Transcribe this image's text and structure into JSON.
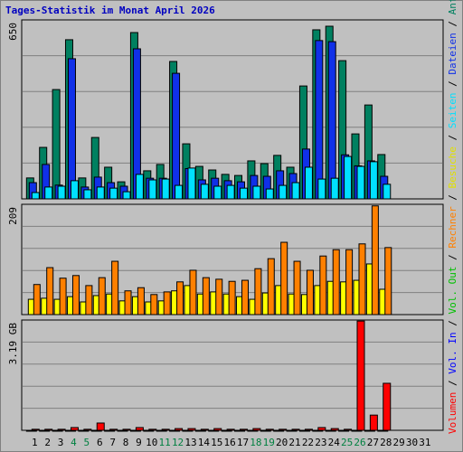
{
  "title": "Tages-Statistik im Monat April 2026",
  "legend_separator": " / ",
  "chart_data": [
    {
      "type": "bar",
      "ylim": [
        0,
        650
      ],
      "yticks": [
        650
      ],
      "gridlines": [
        130,
        260,
        390,
        520
      ],
      "series": [
        {
          "name": "Seiten",
          "color": "#00e0ff",
          "values": [
            23,
            43,
            46,
            66,
            33,
            43,
            39,
            26,
            89,
            69,
            72,
            49,
            112,
            53,
            46,
            49,
            39,
            46,
            36,
            49,
            59,
            115,
            72,
            75,
            154,
            118,
            135,
            53,
            null,
            null,
            null
          ]
        },
        {
          "name": "Dateien",
          "color": "#1030e8",
          "values": [
            59,
            125,
            50,
            509,
            43,
            79,
            59,
            46,
            545,
            75,
            75,
            456,
            110,
            69,
            75,
            66,
            62,
            85,
            82,
            102,
            92,
            181,
            575,
            571,
            160,
            120,
            138,
            82,
            null,
            null,
            null
          ]
        },
        {
          "name": "Anfragen",
          "color": "#008060",
          "values": [
            76,
            187,
            397,
            578,
            76,
            223,
            115,
            62,
            604,
            102,
            125,
            499,
            200,
            118,
            105,
            89,
            85,
            138,
            128,
            158,
            115,
            410,
            614,
            627,
            502,
            236,
            341,
            161,
            null,
            null,
            null
          ]
        }
      ]
    },
    {
      "type": "bar",
      "ylim": [
        0,
        209
      ],
      "yticks": [
        209
      ],
      "gridlines": [
        41.8,
        83.6,
        125.4,
        167.2
      ],
      "series": [
        {
          "name": "Rechner",
          "color": "#ff8000",
          "values": [
            57,
            89,
            69,
            74,
            55,
            70,
            101,
            45,
            51,
            38,
            43,
            62,
            84,
            70,
            67,
            63,
            65,
            87,
            106,
            137,
            101,
            84,
            111,
            123,
            123,
            134,
            206,
            127,
            null,
            null,
            null
          ]
        },
        {
          "name": "Besuche",
          "color": "#ffff00",
          "values": [
            29,
            31,
            29,
            34,
            24,
            36,
            39,
            26,
            34,
            24,
            26,
            45,
            55,
            39,
            43,
            39,
            34,
            29,
            41,
            55,
            39,
            38,
            55,
            63,
            62,
            65,
            96,
            48,
            null,
            null,
            null
          ]
        }
      ]
    },
    {
      "type": "bar",
      "ylim": [
        0,
        3.19
      ],
      "yticks": [
        {
          "value": 3.19,
          "label": "3.19 GB"
        }
      ],
      "gridlines": [
        0.638,
        1.276,
        1.914,
        2.552
      ],
      "categories": [
        "1",
        "2",
        "3",
        "4",
        "5",
        "6",
        "7",
        "8",
        "9",
        "10",
        "11",
        "12",
        "13",
        "14",
        "15",
        "16",
        "17",
        "18",
        "19",
        "20",
        "21",
        "22",
        "23",
        "24",
        "25",
        "26",
        "27",
        "28",
        "29",
        "30",
        "31"
      ],
      "category_colors": [
        "#000",
        "#000",
        "#000",
        "#008040",
        "#008040",
        "#000",
        "#000",
        "#000",
        "#000",
        "#000",
        "#008040",
        "#008040",
        "#000",
        "#000",
        "#000",
        "#000",
        "#000",
        "#008040",
        "#008040",
        "#000",
        "#000",
        "#000",
        "#000",
        "#000",
        "#008040",
        "#008040",
        "#000",
        "#000",
        "#000",
        "#000",
        "#000"
      ],
      "series": [
        {
          "name": "Volumen",
          "color": "#ff0000",
          "values": [
            0.03,
            0.03,
            0.03,
            0.08,
            0.03,
            0.21,
            0.03,
            0.03,
            0.08,
            0.03,
            0.03,
            0.05,
            0.05,
            0.03,
            0.05,
            0.03,
            0.03,
            0.05,
            0.03,
            0.03,
            0.03,
            0.03,
            0.08,
            0.05,
            0.03,
            3.16,
            0.44,
            1.36,
            null,
            null,
            null
          ]
        },
        {
          "name": "Vol. In",
          "color": "#0000ff",
          "values": [
            0,
            0,
            0,
            0,
            0,
            0,
            0,
            0,
            0,
            0,
            0,
            0,
            0,
            0,
            0,
            0,
            0,
            0,
            0,
            0,
            0,
            0,
            0,
            0,
            0,
            0,
            0,
            0,
            null,
            null,
            null
          ]
        },
        {
          "name": "Vol. Out",
          "color": "#00c000",
          "values": [
            0,
            0,
            0,
            0,
            0,
            0,
            0,
            0,
            0,
            0,
            0,
            0,
            0,
            0,
            0,
            0,
            0,
            0,
            0,
            0,
            0,
            0,
            0,
            0,
            0,
            0,
            0,
            0,
            null,
            null,
            null
          ]
        }
      ]
    }
  ]
}
